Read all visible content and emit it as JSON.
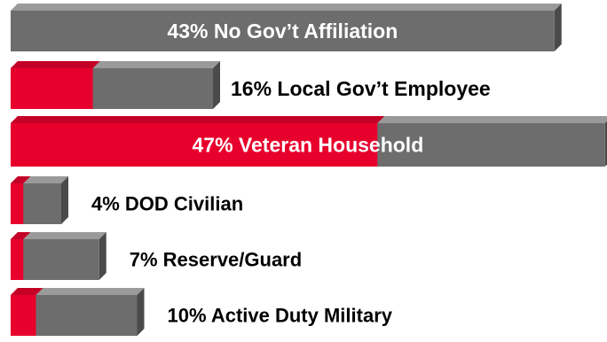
{
  "chart_data": {
    "type": "bar",
    "orientation": "horizontal",
    "grid": false,
    "legend": "none",
    "categories": [
      "No Gov’t Affiliation",
      "Local Gov’t Employee",
      "Veteran Household",
      "DOD Civilian",
      "Reserve/Guard",
      "Active Duty Military"
    ],
    "labels": [
      "43% No Gov’t Affiliation",
      "16% Local Gov’t Employee",
      "47% Veteran Household",
      "4% DOD Civilian",
      "7% Reserve/Guard",
      "10% Active Duty Military"
    ],
    "values": [
      43,
      16,
      47,
      4,
      7,
      10
    ],
    "red_portion": [
      0,
      6.5,
      29,
      1,
      1,
      2
    ],
    "colors": {
      "red": "#e8002d",
      "red_top": "#c40026",
      "gray": "#6d6d6d",
      "gray_top": "#9a9a9a",
      "gray_side": "#4a4a4a",
      "label_dark": "#000000",
      "label_light": "#ffffff"
    }
  }
}
